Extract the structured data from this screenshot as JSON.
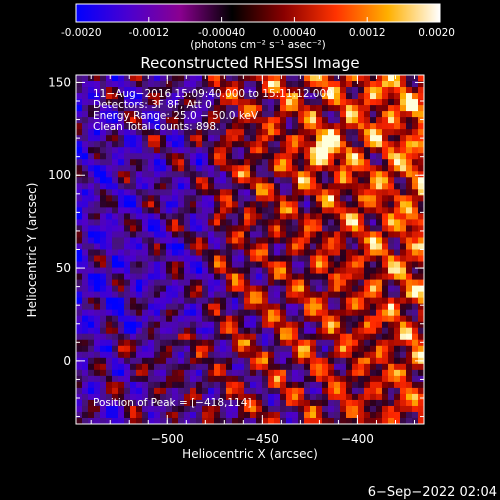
{
  "colorbar": {
    "ticks": [
      "-0.0020",
      "-0.0012",
      "-0.00040",
      "0.00040",
      "0.0012",
      "0.0020"
    ],
    "unit_label": "(photons cm⁻² s⁻¹ asec⁻²)",
    "colors": [
      "#0000ff",
      "#4a00d0",
      "#8a0090",
      "#000000",
      "#8a0000",
      "#ff3300",
      "#ffb000",
      "#ffffff"
    ]
  },
  "chart_data": {
    "type": "heatmap",
    "title": "Reconstructed RHESSI Image",
    "xlabel": "Heliocentric X (arcsec)",
    "ylabel": "Heliocentric Y (arcsec)",
    "xlim": [
      -548,
      -365
    ],
    "ylim": [
      -34,
      154
    ],
    "xticks": [
      {
        "value": -500,
        "label": "−500"
      },
      {
        "value": -450,
        "label": "−450"
      },
      {
        "value": -400,
        "label": "−400"
      }
    ],
    "yticks": [
      {
        "value": 0,
        "label": "0"
      },
      {
        "value": 50,
        "label": "50"
      },
      {
        "value": 100,
        "label": "100"
      },
      {
        "value": 150,
        "label": "150"
      }
    ],
    "annotations": [
      "11−Aug−2016 15:09:40.000 to 15:11:12.000",
      "Detectors: 3F 8F, Att 0",
      "Energy Range: 25.0 − 50.0 keV",
      "Clean    Total counts: 898."
    ],
    "peak_label": "Position of Peak = [−418,114]",
    "peak": [
      -418,
      114
    ]
  },
  "footer": {
    "timestamp": "6−Sep−2022 02:04"
  }
}
